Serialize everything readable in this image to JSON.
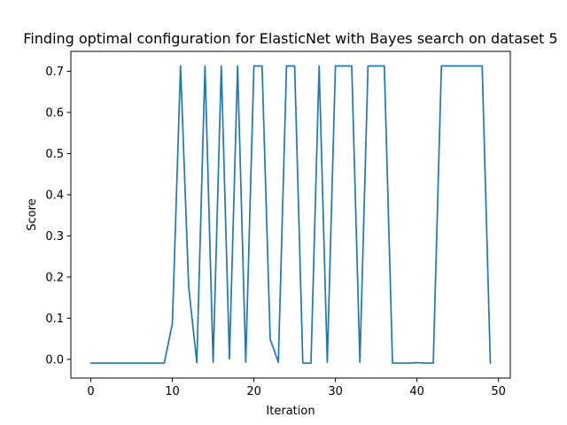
{
  "chart_data": {
    "type": "line",
    "title": "Finding optimal configuration for ElasticNet with Bayes search on dataset 5",
    "xlabel": "Iteration",
    "ylabel": "Score",
    "xlim": [
      -2.45,
      51.45
    ],
    "ylim": [
      -0.0455,
      0.7485
    ],
    "x_ticks": [
      0,
      10,
      20,
      30,
      40,
      50
    ],
    "y_ticks": [
      0.0,
      0.1,
      0.2,
      0.3,
      0.4,
      0.5,
      0.6,
      0.7
    ],
    "x_tick_labels": [
      "0",
      "10",
      "20",
      "30",
      "40",
      "50"
    ],
    "y_tick_labels": [
      "0.0",
      "0.1",
      "0.2",
      "0.3",
      "0.4",
      "0.5",
      "0.6",
      "0.7"
    ],
    "grid": false,
    "legend": false,
    "colors": {
      "line": "#1f77b4"
    },
    "series": [
      {
        "x": [
          0,
          1,
          2,
          3,
          4,
          5,
          6,
          7,
          8,
          9,
          10,
          11,
          12,
          13,
          14,
          15,
          16,
          17,
          18,
          19,
          20,
          21,
          22,
          23,
          24,
          25,
          26,
          27,
          28,
          29,
          30,
          31,
          32,
          33,
          34,
          35,
          36,
          37,
          38,
          39,
          40,
          41,
          42,
          43,
          44,
          45,
          46,
          47,
          48,
          49
        ],
        "values": [
          -0.009,
          -0.009,
          -0.009,
          -0.009,
          -0.009,
          -0.009,
          -0.009,
          -0.009,
          -0.009,
          -0.009,
          0.087,
          0.713,
          0.176,
          -0.008,
          0.713,
          -0.007,
          0.713,
          0.001,
          0.713,
          -0.007,
          0.713,
          0.713,
          0.049,
          -0.007,
          0.713,
          0.713,
          -0.009,
          -0.009,
          0.713,
          -0.007,
          0.713,
          0.713,
          0.713,
          -0.007,
          0.713,
          0.713,
          0.713,
          -0.009,
          -0.009,
          -0.009,
          -0.008,
          -0.009,
          -0.009,
          0.713,
          0.713,
          0.713,
          0.713,
          0.713,
          0.713,
          -0.009
        ]
      }
    ]
  }
}
